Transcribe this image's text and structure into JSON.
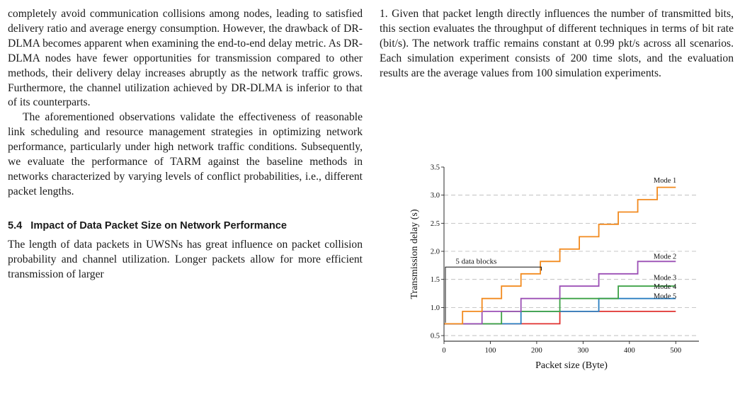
{
  "left_column": {
    "paragraph1": "completely avoid communication collisions among nodes, leading to satisfied delivery ratio and average energy consumption. However, the drawback of DR-DLMA becomes apparent when examining the end-to-end delay metric. As DR-DLMA nodes have fewer opportunities for transmission compared to other methods, their delivery delay increases abruptly as the network traffic grows. Furthermore, the channel utilization achieved by DR-DLMA is inferior to that of its counterparts.",
    "paragraph2": "The aforementioned observations validate the effectiveness of reasonable link scheduling and resource management strategies in optimizing network performance, particularly under high network traffic conditions. Subsequently, we evaluate the performance of TARM against the baseline methods in networks characterized by varying levels of conflict probabilities, i.e., different packet lengths.",
    "section": {
      "number": "5.4",
      "title": "Impact of Data Packet Size on Network Performance"
    },
    "paragraph3": "The length of data packets in UWSNs has great influence on packet collision probability and channel utilization. Longer packets allow for more efficient transmission of larger"
  },
  "right_column": {
    "paragraph1": "1. Given that packet length directly influences the number of transmitted bits, this section evaluates the throughput of different techniques in terms of bit rate (bit/s). The network traffic remains constant at 0.99 pkt/s across all scenarios. Each simulation experiment consists of 200 time slots, and the evaluation results are the average values from 100 simulation experiments."
  },
  "chart_data": {
    "type": "line",
    "step": true,
    "xlabel": "Packet size (Byte)",
    "ylabel": "Transmission delay (s)",
    "xlim": [
      0,
      550
    ],
    "ylim": [
      0.4,
      3.5
    ],
    "xticks": [
      0,
      100,
      200,
      300,
      400,
      500
    ],
    "yticks": [
      0.5,
      1.0,
      1.5,
      2.0,
      2.5,
      3.0,
      3.5
    ],
    "ytick_labels": [
      "0.5",
      "1.0",
      "1.5",
      "2.0",
      "2.5",
      "3.0",
      "3.5"
    ],
    "grid": "horizontal dashed",
    "annotation": {
      "text": "5 data blocks",
      "x_range": [
        0,
        210
      ],
      "y": 1.72
    },
    "series": [
      {
        "name": "Mode 1",
        "color": "#f28a1e",
        "points": [
          [
            0,
            0.71
          ],
          [
            40,
            0.71
          ],
          [
            40,
            0.93
          ],
          [
            82,
            0.93
          ],
          [
            82,
            1.16
          ],
          [
            124,
            1.16
          ],
          [
            124,
            1.38
          ],
          [
            166,
            1.38
          ],
          [
            166,
            1.6
          ],
          [
            208,
            1.6
          ],
          [
            208,
            1.82
          ],
          [
            250,
            1.82
          ],
          [
            250,
            2.04
          ],
          [
            292,
            2.04
          ],
          [
            292,
            2.26
          ],
          [
            334,
            2.26
          ],
          [
            334,
            2.48
          ],
          [
            376,
            2.48
          ],
          [
            376,
            2.7
          ],
          [
            418,
            2.7
          ],
          [
            418,
            2.92
          ],
          [
            460,
            2.92
          ],
          [
            460,
            3.14
          ],
          [
            500,
            3.14
          ]
        ]
      },
      {
        "name": "Mode 2",
        "color": "#9b4fb5",
        "points": [
          [
            0,
            0.71
          ],
          [
            82,
            0.71
          ],
          [
            82,
            0.93
          ],
          [
            166,
            0.93
          ],
          [
            166,
            1.16
          ],
          [
            250,
            1.16
          ],
          [
            250,
            1.38
          ],
          [
            334,
            1.38
          ],
          [
            334,
            1.6
          ],
          [
            418,
            1.6
          ],
          [
            418,
            1.82
          ],
          [
            500,
            1.82
          ]
        ]
      },
      {
        "name": "Mode 3",
        "color": "#3ca145",
        "points": [
          [
            0,
            0.71
          ],
          [
            124,
            0.71
          ],
          [
            124,
            0.93
          ],
          [
            250,
            0.93
          ],
          [
            250,
            1.16
          ],
          [
            376,
            1.16
          ],
          [
            376,
            1.38
          ],
          [
            500,
            1.38
          ]
        ]
      },
      {
        "name": "Mode 4",
        "color": "#2a7fc1",
        "points": [
          [
            0,
            0.71
          ],
          [
            166,
            0.71
          ],
          [
            166,
            0.93
          ],
          [
            334,
            0.93
          ],
          [
            334,
            1.16
          ],
          [
            500,
            1.16
          ]
        ]
      },
      {
        "name": "Mode 5",
        "color": "#e0312f",
        "points": [
          [
            0,
            0.71
          ],
          [
            250,
            0.71
          ],
          [
            250,
            0.93
          ],
          [
            500,
            0.93
          ]
        ]
      }
    ],
    "label_y": {
      "Mode 1": 3.22,
      "Mode 2": 1.87,
      "Mode 3": 1.49,
      "Mode 4": 1.33,
      "Mode 5": 1.16
    }
  }
}
